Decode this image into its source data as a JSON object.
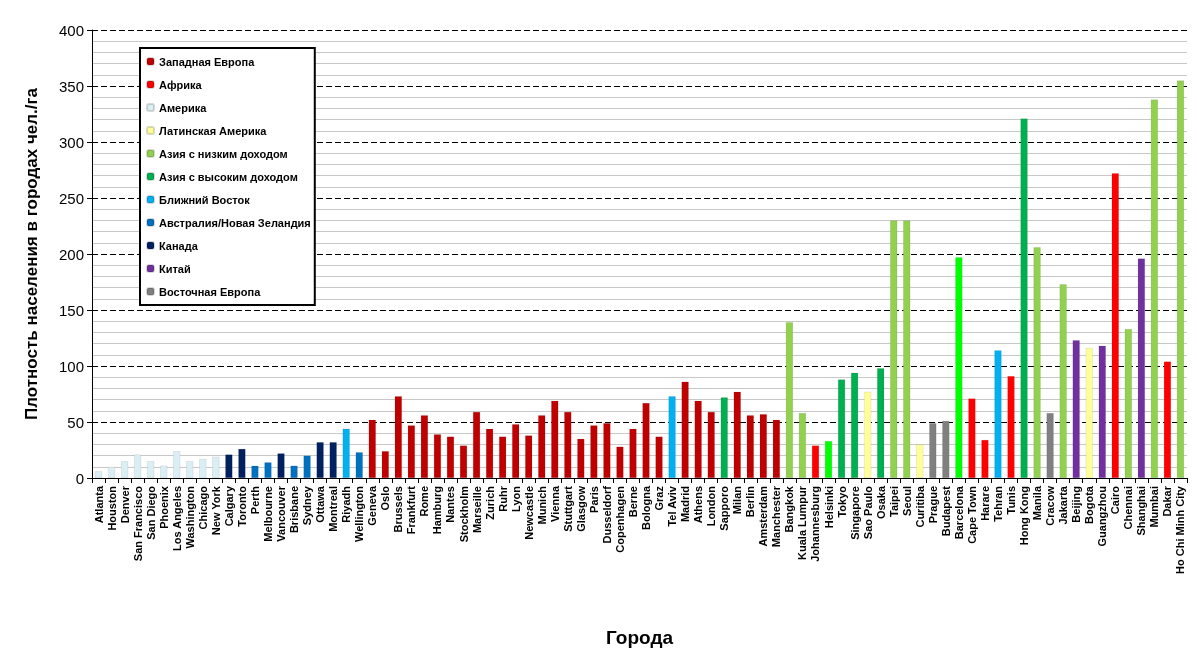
{
  "chart_data": {
    "type": "bar",
    "xlabel": "Города",
    "ylabel": "Плотность населения в городах чел./га",
    "categories": [
      "Atlanta",
      "Houston",
      "Denver",
      "San Francisco",
      "San Diego",
      "Phoenix",
      "Los Angeles",
      "Washington",
      "Chicago",
      "New York",
      "Calgary",
      "Toronto",
      "Perth",
      "Melbourne",
      "Vancouver",
      "Brisbane",
      "Sydney",
      "Ottawa",
      "Montreal",
      "Riyadh",
      "Wellington",
      "Geneva",
      "Oslo",
      "Brussels",
      "Frankfurt",
      "Rome",
      "Hamburg",
      "Nantes",
      "Stockholm",
      "Marseille",
      "Zurich",
      "Ruhr",
      "Lyon",
      "Newcastle",
      "Munich",
      "Vienna",
      "Stuttgart",
      "Glasgow",
      "Paris",
      "Dusseldorf",
      "Copenhagen",
      "Berne",
      "Bologna",
      "Graz",
      "Tel Aviv",
      "Madrid",
      "Athens",
      "London",
      "Sapporo",
      "Milan",
      "Berlin",
      "Amsterdam",
      "Manchester",
      "Bangkok",
      "Kuala Lumpur",
      "Johannesburg",
      "Helsinki",
      "Tokyo",
      "Singapore",
      "Sao Paulo",
      "Osaka",
      "Taipei",
      "Seoul",
      "Curitiba",
      "Prague",
      "Budapest",
      "Barcelona",
      "Cape Town",
      "Harare",
      "Tehran",
      "Tunis",
      "Hong Kong",
      "Manila",
      "Cracow",
      "Jakarta",
      "Beijing",
      "Bogota",
      "Guangzhou",
      "Cairo",
      "Chennai",
      "Shanghai",
      "Mumbai",
      "Dakar",
      "Ho Chi Minh City"
    ],
    "series": [
      {
        "name": "Западная Европа",
        "color": "#c00000",
        "values": [
          null,
          null,
          null,
          null,
          null,
          null,
          null,
          null,
          null,
          null,
          null,
          null,
          null,
          null,
          null,
          null,
          null,
          null,
          null,
          null,
          null,
          52,
          24,
          73,
          47,
          56,
          39,
          37,
          29,
          59,
          44,
          37,
          48,
          38,
          56,
          69,
          59,
          35,
          47,
          49,
          28,
          44,
          67,
          37,
          null,
          86,
          69,
          59,
          null,
          77,
          56,
          57,
          52,
          null,
          null,
          null,
          null,
          null,
          null,
          null,
          null,
          null,
          null,
          null,
          null,
          null,
          null,
          null,
          null,
          null,
          null,
          null,
          null,
          null,
          null,
          null,
          null,
          null,
          null,
          null,
          null,
          null,
          null,
          null
        ]
      },
      {
        "name": "Африка",
        "color": "#ff0000",
        "values": [
          null,
          null,
          null,
          null,
          null,
          null,
          null,
          null,
          null,
          null,
          null,
          null,
          null,
          null,
          null,
          null,
          null,
          null,
          null,
          null,
          null,
          null,
          null,
          null,
          null,
          null,
          null,
          null,
          null,
          null,
          null,
          null,
          null,
          null,
          null,
          null,
          null,
          null,
          null,
          null,
          null,
          null,
          null,
          null,
          null,
          null,
          null,
          null,
          null,
          null,
          null,
          null,
          null,
          null,
          null,
          29,
          null,
          null,
          null,
          null,
          null,
          null,
          null,
          null,
          null,
          null,
          null,
          71,
          34,
          null,
          91,
          null,
          null,
          null,
          null,
          null,
          null,
          null,
          272,
          null,
          null,
          null,
          104,
          null
        ]
      },
      {
        "name": "Америка",
        "color": "#dbeef4",
        "values": [
          6,
          10,
          15,
          21,
          15,
          11,
          24,
          15,
          17,
          19,
          null,
          null,
          null,
          null,
          null,
          null,
          null,
          null,
          null,
          null,
          null,
          null,
          null,
          null,
          null,
          null,
          null,
          null,
          null,
          null,
          null,
          null,
          null,
          null,
          null,
          null,
          null,
          null,
          null,
          null,
          null,
          null,
          null,
          null,
          null,
          null,
          null,
          null,
          null,
          null,
          null,
          null,
          null,
          null,
          null,
          null,
          null,
          null,
          null,
          null,
          null,
          null,
          null,
          null,
          null,
          null,
          null,
          null,
          null,
          null,
          null,
          null,
          null,
          null,
          null,
          null,
          null,
          null,
          null,
          null,
          null,
          null,
          null,
          null
        ]
      },
      {
        "name": "Латинская Америка",
        "color": "#ffff99",
        "values": [
          null,
          null,
          null,
          null,
          null,
          null,
          null,
          null,
          null,
          null,
          null,
          null,
          null,
          null,
          null,
          null,
          null,
          null,
          null,
          null,
          null,
          null,
          null,
          null,
          null,
          null,
          null,
          null,
          null,
          null,
          null,
          null,
          null,
          null,
          null,
          null,
          null,
          null,
          null,
          null,
          null,
          null,
          null,
          null,
          null,
          null,
          null,
          null,
          null,
          null,
          null,
          null,
          null,
          null,
          null,
          null,
          null,
          null,
          null,
          77,
          null,
          null,
          null,
          30,
          null,
          null,
          null,
          null,
          null,
          null,
          null,
          null,
          null,
          null,
          null,
          null,
          116,
          null,
          null,
          null,
          null,
          null,
          null,
          null
        ]
      },
      {
        "name": "Азия с низким доходом",
        "color": "#92d050",
        "values": [
          null,
          null,
          null,
          null,
          null,
          null,
          null,
          null,
          null,
          null,
          null,
          null,
          null,
          null,
          null,
          null,
          null,
          null,
          null,
          null,
          null,
          null,
          null,
          null,
          null,
          null,
          null,
          null,
          null,
          null,
          null,
          null,
          null,
          null,
          null,
          null,
          null,
          null,
          null,
          null,
          null,
          null,
          null,
          null,
          null,
          null,
          null,
          null,
          null,
          null,
          null,
          null,
          null,
          139,
          58,
          null,
          null,
          null,
          null,
          null,
          null,
          230,
          230,
          null,
          null,
          null,
          null,
          null,
          null,
          null,
          null,
          null,
          206,
          null,
          173,
          null,
          null,
          null,
          null,
          133,
          null,
          338,
          null,
          355
        ]
      },
      {
        "name": "Азия с высоким доходом",
        "color": "#00b050",
        "values": [
          null,
          null,
          null,
          null,
          null,
          null,
          null,
          null,
          null,
          null,
          null,
          null,
          null,
          null,
          null,
          null,
          null,
          null,
          null,
          null,
          null,
          null,
          null,
          null,
          null,
          null,
          null,
          null,
          null,
          null,
          null,
          null,
          null,
          null,
          null,
          null,
          null,
          null,
          null,
          null,
          null,
          null,
          null,
          null,
          null,
          null,
          null,
          null,
          72,
          null,
          null,
          null,
          null,
          null,
          null,
          null,
          null,
          88,
          94,
          null,
          98,
          null,
          null,
          null,
          null,
          null,
          null,
          null,
          null,
          null,
          null,
          321,
          null,
          null,
          null,
          null,
          null,
          null,
          null,
          null,
          null,
          null,
          null,
          null
        ]
      },
      {
        "name": "Ближний Восток",
        "color": "#00b0f0",
        "values": [
          null,
          null,
          null,
          null,
          null,
          null,
          null,
          null,
          null,
          null,
          null,
          null,
          null,
          null,
          null,
          null,
          null,
          null,
          null,
          44,
          null,
          null,
          null,
          null,
          null,
          null,
          null,
          null,
          null,
          null,
          null,
          null,
          null,
          null,
          null,
          null,
          null,
          null,
          null,
          null,
          null,
          null,
          null,
          null,
          73,
          null,
          null,
          null,
          null,
          null,
          null,
          null,
          null,
          null,
          null,
          null,
          null,
          null,
          null,
          null,
          null,
          null,
          null,
          null,
          null,
          null,
          null,
          null,
          null,
          114,
          null,
          null,
          null,
          null,
          null,
          null,
          null,
          null,
          null,
          null,
          null,
          null,
          null,
          null
        ]
      },
      {
        "name": "Австралия/Новая Зеландия",
        "color": "#0070c0",
        "values": [
          null,
          null,
          null,
          null,
          null,
          null,
          null,
          null,
          null,
          null,
          null,
          null,
          11,
          14,
          null,
          11,
          20,
          null,
          null,
          null,
          23,
          null,
          null,
          null,
          null,
          null,
          null,
          null,
          null,
          null,
          null,
          null,
          null,
          null,
          null,
          null,
          null,
          null,
          null,
          null,
          null,
          null,
          null,
          null,
          null,
          null,
          null,
          null,
          null,
          null,
          null,
          null,
          null,
          null,
          null,
          null,
          null,
          null,
          null,
          null,
          null,
          null,
          null,
          null,
          null,
          null,
          null,
          null,
          null,
          null,
          null,
          null,
          null,
          null,
          null,
          null,
          null,
          null,
          null,
          null,
          null,
          null,
          null,
          null
        ]
      },
      {
        "name": "Канада",
        "color": "#002060",
        "values": [
          null,
          null,
          null,
          null,
          null,
          null,
          null,
          null,
          null,
          null,
          21,
          26,
          null,
          null,
          22,
          null,
          null,
          32,
          32,
          null,
          null,
          null,
          null,
          null,
          null,
          null,
          null,
          null,
          null,
          null,
          null,
          null,
          null,
          null,
          null,
          null,
          null,
          null,
          null,
          null,
          null,
          null,
          null,
          null,
          null,
          null,
          null,
          null,
          null,
          null,
          null,
          null,
          null,
          null,
          null,
          null,
          null,
          null,
          null,
          null,
          null,
          null,
          null,
          null,
          null,
          null,
          null,
          null,
          null,
          null,
          null,
          null,
          null,
          null,
          null,
          null,
          null,
          null,
          null,
          null,
          null,
          null,
          null,
          null
        ]
      },
      {
        "name": "Китай",
        "color": "#7030a0",
        "values": [
          null,
          null,
          null,
          null,
          null,
          null,
          null,
          null,
          null,
          null,
          null,
          null,
          null,
          null,
          null,
          null,
          null,
          null,
          null,
          null,
          null,
          null,
          null,
          null,
          null,
          null,
          null,
          null,
          null,
          null,
          null,
          null,
          null,
          null,
          null,
          null,
          null,
          null,
          null,
          null,
          null,
          null,
          null,
          null,
          null,
          null,
          null,
          null,
          null,
          null,
          null,
          null,
          null,
          null,
          null,
          null,
          null,
          null,
          null,
          null,
          null,
          null,
          null,
          null,
          null,
          null,
          null,
          null,
          null,
          null,
          null,
          null,
          null,
          null,
          null,
          123,
          null,
          118,
          null,
          null,
          196,
          null,
          null,
          null
        ]
      },
      {
        "name": "Восточная Европа",
        "color": "#808080",
        "values": [
          null,
          null,
          null,
          null,
          null,
          null,
          null,
          null,
          null,
          null,
          null,
          null,
          null,
          null,
          null,
          null,
          null,
          null,
          null,
          null,
          null,
          null,
          null,
          null,
          null,
          null,
          null,
          null,
          null,
          null,
          null,
          null,
          null,
          null,
          null,
          null,
          null,
          null,
          null,
          null,
          null,
          null,
          null,
          null,
          null,
          null,
          null,
          null,
          null,
          null,
          null,
          null,
          null,
          null,
          null,
          null,
          null,
          null,
          null,
          null,
          null,
          null,
          null,
          null,
          49,
          51,
          null,
          null,
          null,
          null,
          null,
          null,
          null,
          58,
          null,
          null,
          null,
          null,
          null,
          null,
          null,
          null,
          null,
          null
        ]
      },
      {
        "color": "#00ff00",
        "values": [
          null,
          null,
          null,
          null,
          null,
          null,
          null,
          null,
          null,
          null,
          null,
          null,
          null,
          null,
          null,
          null,
          null,
          null,
          null,
          null,
          null,
          null,
          null,
          null,
          null,
          null,
          null,
          null,
          null,
          null,
          null,
          null,
          null,
          null,
          null,
          null,
          null,
          null,
          null,
          null,
          null,
          null,
          null,
          null,
          null,
          null,
          null,
          null,
          null,
          null,
          null,
          null,
          null,
          null,
          null,
          null,
          33,
          null,
          null,
          null,
          null,
          null,
          null,
          null,
          null,
          null,
          197,
          null,
          null,
          null,
          null,
          null,
          null,
          null,
          null,
          null,
          null,
          null,
          null,
          null,
          null,
          null,
          null,
          null
        ]
      }
    ],
    "ylim": [
      0,
      400
    ],
    "yticks": [
      0,
      50,
      100,
      150,
      200,
      250,
      300,
      350,
      400
    ],
    "grid": "y",
    "legend": "top left"
  }
}
